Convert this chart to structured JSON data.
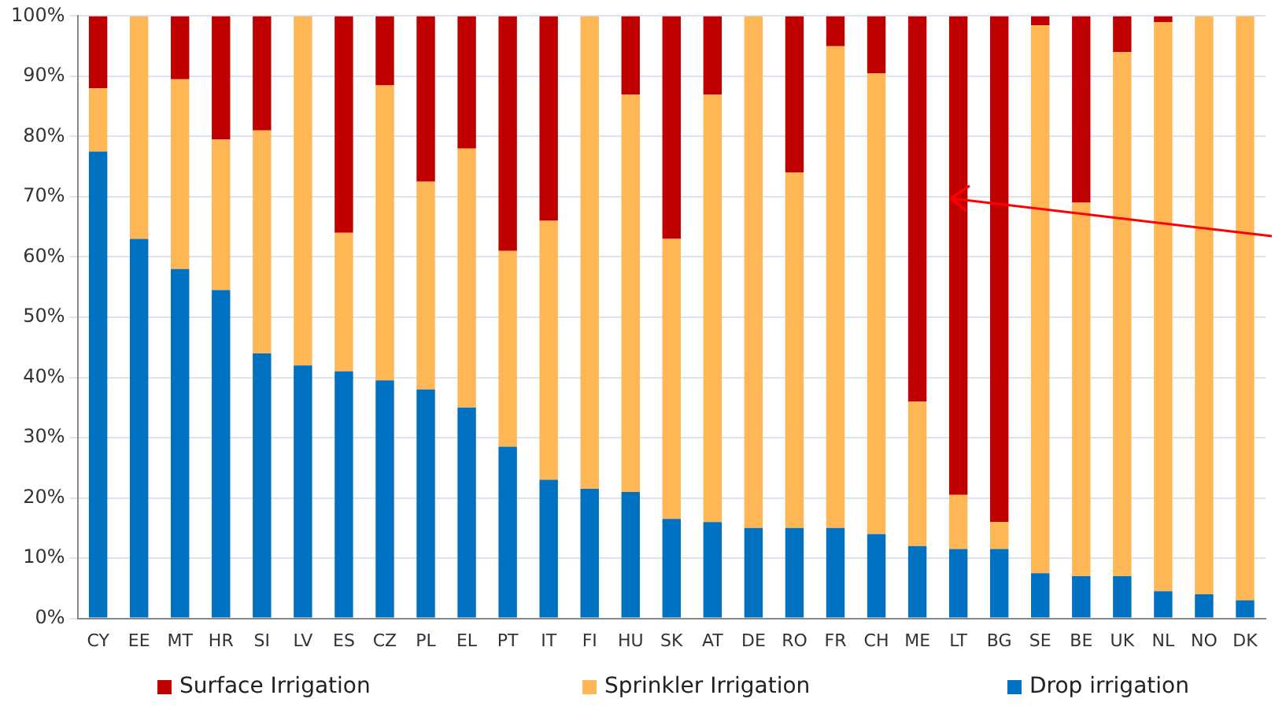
{
  "chart_data": {
    "type": "bar",
    "stacked": true,
    "categories": [
      "CY",
      "EE",
      "MT",
      "HR",
      "SI",
      "LV",
      "ES",
      "CZ",
      "PL",
      "EL",
      "PT",
      "IT",
      "FI",
      "HU",
      "SK",
      "AT",
      "DE",
      "RO",
      "FR",
      "CH",
      "ME",
      "LT",
      "BG",
      "SE",
      "BE",
      "UK",
      "NL",
      "NO",
      "DK"
    ],
    "series": [
      {
        "name": "Drop irrigation",
        "color": "#0070c0",
        "values": [
          77.5,
          63,
          58,
          54.5,
          44,
          42,
          41,
          39.5,
          38,
          35,
          28.5,
          23,
          21.5,
          21,
          16.5,
          16,
          15,
          15,
          15,
          14,
          12,
          11.5,
          11.5,
          7.5,
          7,
          7,
          4.5,
          4,
          3
        ]
      },
      {
        "name": "Sprinkler Irrigation",
        "color": "#ffb655",
        "values": [
          10.5,
          37,
          31.5,
          25,
          37,
          58,
          23,
          49,
          34.5,
          43,
          32.5,
          43,
          78.5,
          66,
          46.5,
          71,
          85,
          59,
          80,
          76.5,
          24,
          9,
          4.5,
          91,
          62,
          87,
          94.5,
          96,
          97
        ]
      },
      {
        "name": "Surface Irrigation",
        "color": "#c00000",
        "values": [
          12,
          0,
          10.5,
          20.5,
          19,
          0,
          36,
          11.5,
          27.5,
          22,
          39,
          34,
          0,
          13,
          37,
          13,
          0,
          26,
          5,
          9.5,
          64,
          79.5,
          84,
          1.5,
          31,
          6,
          1,
          0,
          0
        ]
      }
    ],
    "ylim": [
      0,
      100
    ],
    "yticks": [
      {
        "value": 0,
        "label": "0%"
      },
      {
        "value": 10,
        "label": "10%"
      },
      {
        "value": 20,
        "label": "20%"
      },
      {
        "value": 30,
        "label": "30%"
      },
      {
        "value": 40,
        "label": "40%"
      },
      {
        "value": 50,
        "label": "50%"
      },
      {
        "value": 60,
        "label": "60%"
      },
      {
        "value": 70,
        "label": "70%"
      },
      {
        "value": 80,
        "label": "80%"
      },
      {
        "value": 90,
        "label": "90%"
      },
      {
        "value": 100,
        "label": "100%"
      }
    ],
    "grid": "y",
    "legend": "bottom"
  }
}
